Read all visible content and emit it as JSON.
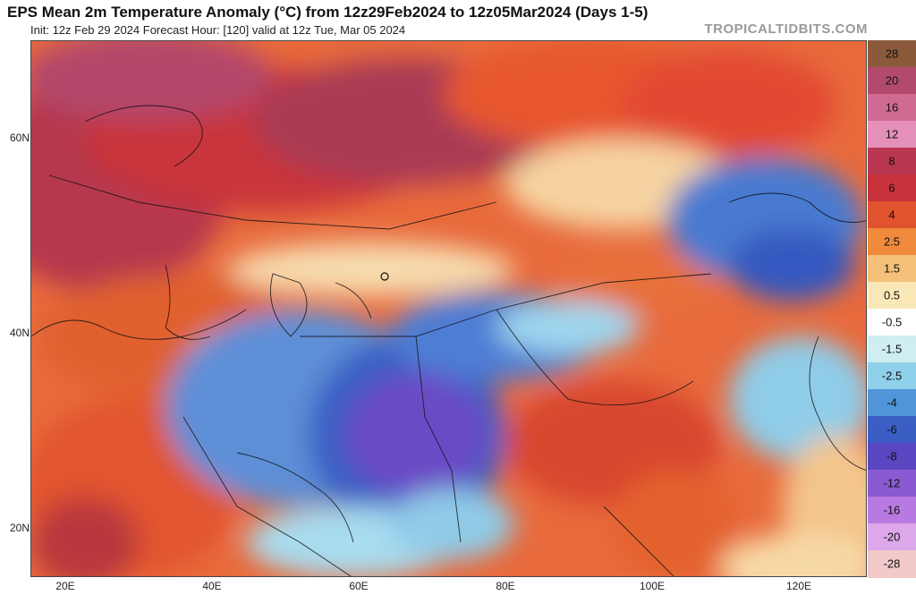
{
  "header": {
    "title": "EPS Mean 2m Temperature Anomaly (°C) from 12z29Feb2024 to 12z05Mar2024 (Days 1-5)",
    "subtitle": "Init: 12z Feb 29 2024   Forecast Hour: [120]   valid at 12z Tue, Mar 05 2024",
    "brand": "TROPICALTIDBITS.COM"
  },
  "axes": {
    "lat_labels": [
      "60N",
      "40N",
      "20N"
    ],
    "lon_labels": [
      "20E",
      "40E",
      "60E",
      "80E",
      "100E",
      "120E"
    ]
  },
  "colorbar": {
    "labels": [
      "28",
      "20",
      "16",
      "12",
      "8",
      "6",
      "4",
      "2.5",
      "1.5",
      "0.5",
      "-0.5",
      "-1.5",
      "-2.5",
      "-4",
      "-6",
      "-8",
      "-12",
      "-16",
      "-20",
      "-28"
    ],
    "colors": [
      "#8a5a3a",
      "#b24a6e",
      "#cf6a92",
      "#e590b8",
      "#b93650",
      "#c8323a",
      "#e0532e",
      "#f08a3c",
      "#f5c07a",
      "#fbe8b8",
      "#ffffff",
      "#cfeef2",
      "#8fd0ea",
      "#4f95d8",
      "#3a5ec4",
      "#5a46c0",
      "#8a5ad2",
      "#b87ae0",
      "#dca8ea",
      "#f2c8c8"
    ]
  }
}
